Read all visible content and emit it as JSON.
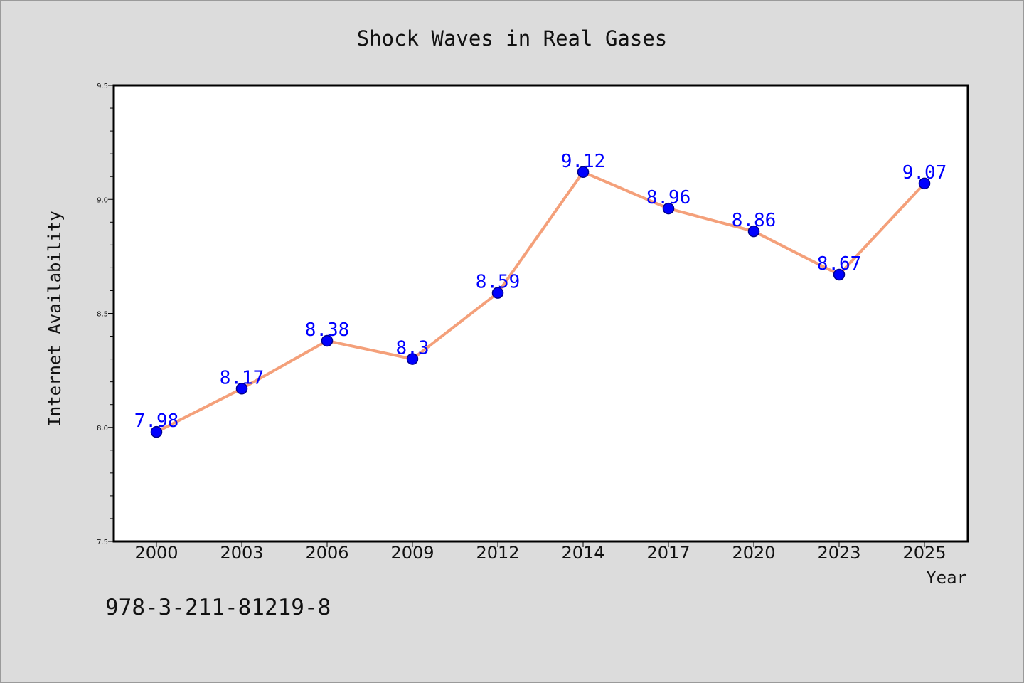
{
  "chart_data": {
    "type": "line",
    "title": "Shock Waves in Real Gases",
    "xlabel": "Year",
    "ylabel": "Internet Availability",
    "categories": [
      "2000",
      "2003",
      "2006",
      "2009",
      "2012",
      "2014",
      "2017",
      "2020",
      "2023",
      "2025"
    ],
    "series": [
      {
        "values": [
          7.98,
          8.17,
          8.38,
          8.3,
          8.59,
          9.12,
          8.96,
          8.86,
          8.67,
          9.07
        ],
        "data_labels": [
          "7.98",
          "8.17",
          "8.38",
          "8.3",
          "8.59",
          "9.12",
          "8.96",
          "8.86",
          "8.67",
          "9.07"
        ]
      }
    ],
    "ylim": [
      7.5,
      9.5
    ],
    "yticks": [
      "7.5",
      "8.0",
      "8.5",
      "9.0",
      "9.5"
    ],
    "grid": false,
    "colors": {
      "line": "#f4a07a",
      "marker_fill": "#0000ff",
      "marker_edge": "#00008b",
      "data_label": "#0000ff",
      "plot_background": "#ffffff",
      "page_background": "#dcdcdc"
    }
  },
  "footer_text": "978-3-211-81219-8"
}
